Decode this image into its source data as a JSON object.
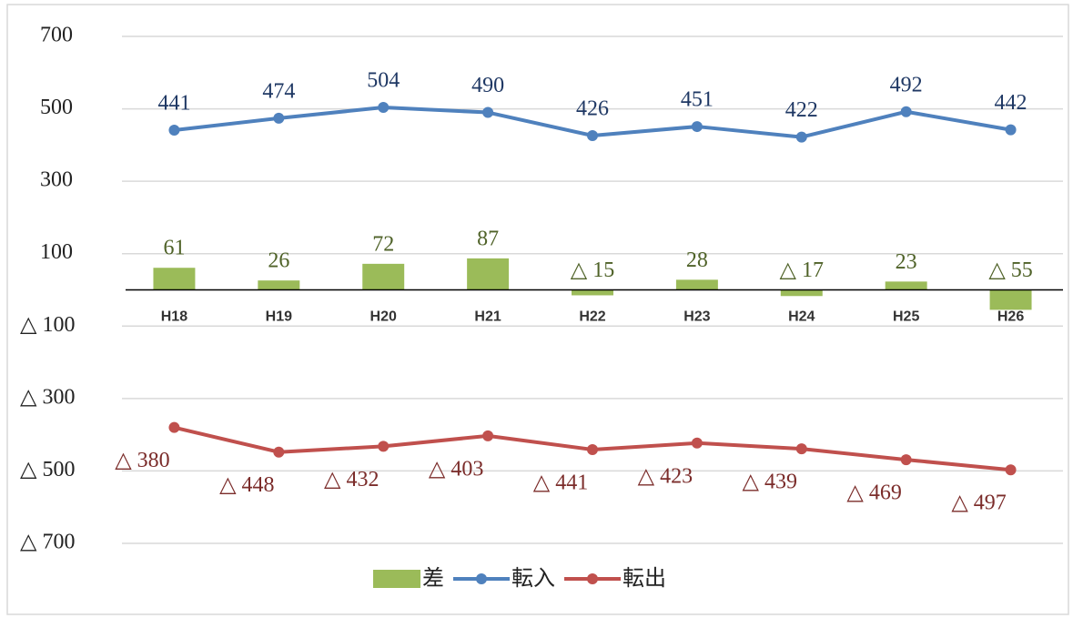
{
  "chart_data": {
    "type": "combo",
    "categories": [
      "H18",
      "H19",
      "H20",
      "H21",
      "H22",
      "H23",
      "H24",
      "H25",
      "H26"
    ],
    "series": [
      {
        "name": "差",
        "type": "bar",
        "color": "#9bbb59",
        "label_color": "#4f6228",
        "values": [
          61,
          26,
          72,
          87,
          -15,
          28,
          -17,
          23,
          -55
        ],
        "value_labels": [
          "61",
          "26",
          "72",
          "87",
          "△ 15",
          "28",
          "△ 17",
          "23",
          "△ 55"
        ]
      },
      {
        "name": "転入",
        "type": "line",
        "color": "#4f81bd",
        "label_color": "#1f3864",
        "values": [
          441,
          474,
          504,
          490,
          426,
          451,
          422,
          492,
          442
        ]
      },
      {
        "name": "転出",
        "type": "line",
        "color": "#c0504d",
        "label_color": "#7b2c2a",
        "values": [
          -380,
          -448,
          -432,
          -403,
          -441,
          -423,
          -439,
          -469,
          -497
        ],
        "value_labels": [
          "△ 380",
          "△ 448",
          "△ 432",
          "△ 403",
          "△ 441",
          "△ 423",
          "△ 439",
          "△ 469",
          "△ 497"
        ]
      }
    ],
    "ylim": [
      -700,
      700
    ],
    "yticks": [
      700,
      500,
      300,
      100,
      {
        "value": -100,
        "label": "△ 100"
      },
      {
        "value": -300,
        "label": "△ 300"
      },
      {
        "value": -500,
        "label": "△ 500"
      },
      {
        "value": -700,
        "label": "△ 700"
      }
    ],
    "grid": true,
    "legend": "bottom"
  }
}
